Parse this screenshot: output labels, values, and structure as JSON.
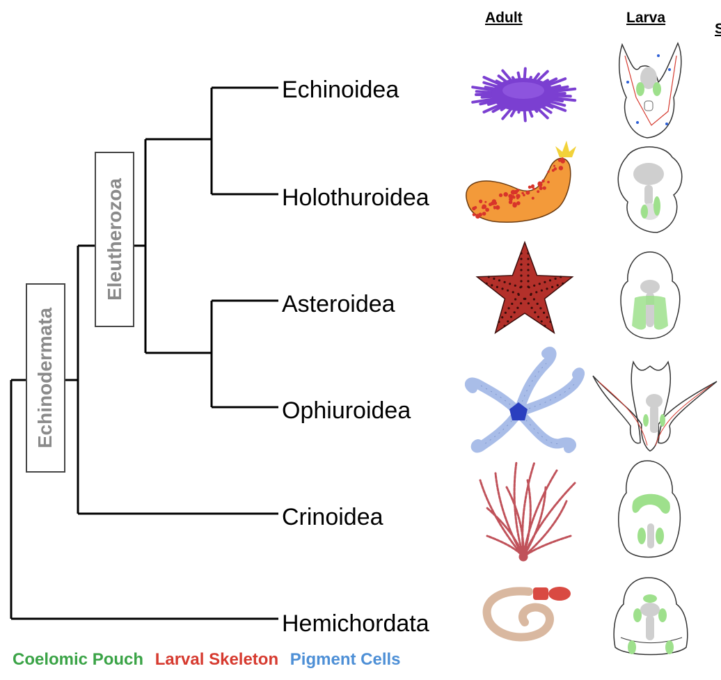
{
  "columns": {
    "adult": "Adult",
    "larva": "Larva",
    "third_cut": "S"
  },
  "clades": {
    "outer": "Echinodermata",
    "inner": "Eleutherozoa"
  },
  "taxa": [
    "Echinoidea",
    "Holothuroidea",
    "Asteroidea",
    "Ophiuroidea",
    "Crinoidea",
    "Hemichordata"
  ],
  "legend": [
    {
      "label": "Coelomic Pouch",
      "color": "#3aa346"
    },
    {
      "label": "Larval Skeleton",
      "color": "#d63a2f"
    },
    {
      "label": "Pigment Cells",
      "color": "#4d8fd6"
    }
  ],
  "icons": {
    "adults": [
      "sea-urchin-icon",
      "sea-cucumber-icon",
      "sea-star-icon",
      "brittle-star-icon",
      "feather-star-icon",
      "acorn-worm-icon"
    ],
    "larvae": [
      "echinopluteus-larva-icon",
      "auricularia-larva-icon",
      "bipinnaria-larva-icon",
      "ophiopluteus-larva-icon",
      "doliolaria-larva-icon",
      "tornaria-larva-icon"
    ]
  },
  "colors": {
    "urchin": "#7b3fd1",
    "cucumber": "#f39a3a",
    "cucumber_spots": "#d8342a",
    "star": "#b3302a",
    "brittle": "#a9bde8",
    "brittle_disc": "#2a3fbf",
    "crinoid": "#c0525a",
    "worm": "#d9b8a0",
    "worm_head": "#d94a42",
    "coelom": "#9ee08c",
    "larva_gut": "#cfcfcf"
  }
}
